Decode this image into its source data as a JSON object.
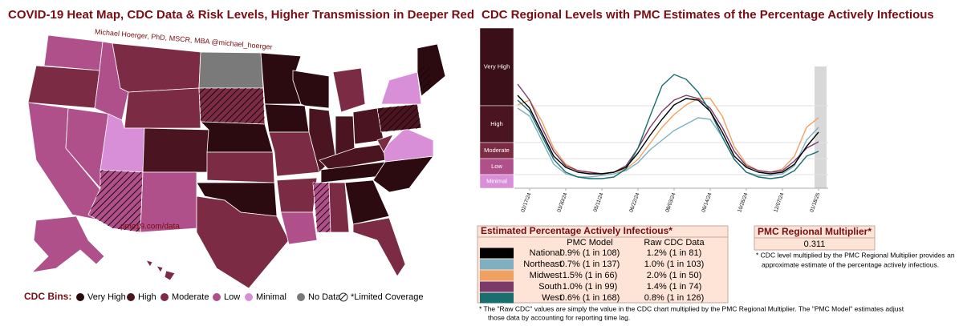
{
  "map": {
    "title": "COVID-19 Heat Map, CDC Data & Risk Levels, Higher Transmission in Deeper Red",
    "credit": "Michael Hoerger, PhD, MSCR, MBA @michael_hoerger",
    "source": "pmc19.com/data",
    "legend_title": "CDC Bins:",
    "legend": [
      {
        "label": "Very High",
        "color": "#2b0a10"
      },
      {
        "label": "High",
        "color": "#4a1520"
      },
      {
        "label": "Moderate",
        "color": "#7b2c44"
      },
      {
        "label": "Low",
        "color": "#b0508a"
      },
      {
        "label": "Minimal",
        "color": "#d98fd8"
      },
      {
        "label": "No Data",
        "color": "#7a7a7a"
      },
      {
        "label": "*Limited Coverage",
        "color": "hatch"
      }
    ]
  },
  "chart_data": {
    "type": "line",
    "title": "CDC Regional Levels with PMC Estimates of the Percentage Actively Infectious",
    "categories": [
      null,
      "02/17/24",
      null,
      null,
      "03/30/24",
      null,
      null,
      "05/11/24",
      null,
      null,
      "06/22/24",
      null,
      null,
      "08/03/24",
      null,
      null,
      "09/14/24",
      null,
      null,
      "10/26/24",
      null,
      null,
      "12/07/24",
      null,
      null,
      "01/18/25"
    ],
    "ylim": [
      0,
      10
    ],
    "bands": [
      {
        "label": "Very High",
        "color": "#3a0f17",
        "from": 5.15,
        "to": 10
      },
      {
        "label": "High",
        "color": "#4a1520",
        "from": 2.85,
        "to": 5.15
      },
      {
        "label": "Moderate",
        "color": "#7b2c44",
        "from": 1.85,
        "to": 2.85
      },
      {
        "label": "Low",
        "color": "#b0508a",
        "from": 0.85,
        "to": 1.85
      },
      {
        "label": "Minimal",
        "color": "#d98fd8",
        "from": 0,
        "to": 0.85
      }
    ],
    "series": [
      {
        "name": "Northeast",
        "color": "#7fb0c0",
        "values": [
          5.0,
          4.5,
          3.0,
          1.5,
          0.9,
          0.7,
          0.7,
          0.8,
          0.9,
          1.1,
          1.6,
          2.4,
          3.0,
          3.6,
          4.0,
          4.4,
          4.3,
          3.2,
          1.8,
          1.0,
          0.8,
          0.8,
          0.9,
          1.4,
          3.0,
          3.8
        ]
      },
      {
        "name": "Midwest",
        "color": "#f0a060",
        "values": [
          5.2,
          5.5,
          4.2,
          2.5,
          1.5,
          1.1,
          1.0,
          0.9,
          1.0,
          1.2,
          1.8,
          2.8,
          3.8,
          4.6,
          5.2,
          5.6,
          5.6,
          4.5,
          2.6,
          1.5,
          1.1,
          1.0,
          1.2,
          2.0,
          3.8,
          4.4
        ]
      },
      {
        "name": "South",
        "color": "#7b3a6a",
        "values": [
          6.5,
          5.5,
          3.8,
          2.3,
          1.4,
          1.1,
          1.0,
          0.9,
          1.0,
          1.4,
          2.5,
          3.8,
          4.8,
          5.5,
          5.8,
          5.6,
          5.0,
          3.8,
          2.3,
          1.4,
          1.1,
          1.0,
          1.1,
          1.7,
          2.5,
          2.9
        ]
      },
      {
        "name": "West",
        "color": "#1a6e70",
        "values": [
          5.5,
          4.8,
          3.3,
          1.8,
          1.0,
          0.7,
          0.6,
          0.6,
          0.7,
          1.2,
          2.5,
          4.5,
          6.4,
          7.1,
          6.8,
          6.0,
          4.8,
          3.2,
          1.8,
          1.0,
          0.7,
          0.6,
          0.7,
          1.1,
          2.0,
          2.3
        ]
      },
      {
        "name": "National",
        "color": "#000000",
        "values": [
          5.8,
          5.0,
          3.5,
          2.0,
          1.3,
          1.0,
          0.9,
          0.9,
          1.0,
          1.3,
          2.2,
          3.3,
          4.3,
          5.2,
          5.6,
          5.5,
          4.8,
          3.5,
          2.0,
          1.3,
          1.0,
          0.9,
          1.0,
          1.5,
          2.6,
          3.5
        ]
      }
    ]
  },
  "table": {
    "title": "Estimated Percentage Actively Infectious*",
    "columns": [
      "PMC Model",
      "Raw CDC Data"
    ],
    "rows": [
      {
        "name": "National",
        "color": "#000000",
        "cells": [
          "0.9% (1 in 108)",
          "1.2% (1 in 81)"
        ]
      },
      {
        "name": "Northeast",
        "color": "#7fb0c0",
        "cells": [
          "0.7% (1 in 137)",
          "1.0% (1 in 103)"
        ]
      },
      {
        "name": "Midwest",
        "color": "#f0a060",
        "cells": [
          "1.5% (1 in 66)",
          "2.0% (1 in 50)"
        ]
      },
      {
        "name": "South",
        "color": "#7b3a6a",
        "cells": [
          "1.0% (1 in 99)",
          "1.4% (1 in 74)"
        ]
      },
      {
        "name": "West",
        "color": "#1a6e70",
        "cells": [
          "0.6% (1 in 168)",
          "0.8% (1 in 126)"
        ]
      }
    ],
    "notes": [
      "* The \"Raw CDC\" values are simply the value in the CDC chart multiplied by the PMC Regional Multiplier. The \"PMC Model\" estimates adjust",
      "those data by accounting for reporting time lag."
    ]
  },
  "multiplier": {
    "title": "PMC Regional Multiplier*",
    "value": "0.311",
    "notes": [
      "* CDC level multiplied by the PMC Regional Multiplier provides an",
      "approximate estimate of the percentage actively infectious."
    ]
  }
}
